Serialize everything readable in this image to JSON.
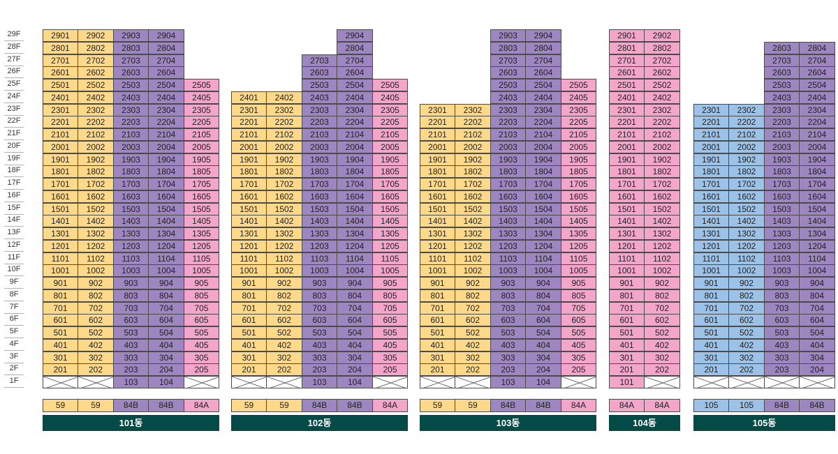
{
  "floors": [
    "1F",
    "2F",
    "3F",
    "4F",
    "5F",
    "6F",
    "7F",
    "8F",
    "9F",
    "10F",
    "11F",
    "12F",
    "13F",
    "14F",
    "15F",
    "16F",
    "17F",
    "18F",
    "19F",
    "20F",
    "21F",
    "22F",
    "23F",
    "24F",
    "25F",
    "26F",
    "27F",
    "28F",
    "29F"
  ],
  "legend_colors": {
    "59": "#fed98a",
    "84B": "#9e86c0",
    "84A": "#f3a5ca",
    "105": "#9cc2e7"
  },
  "buildings": [
    {
      "name": "101동",
      "lines": [
        {
          "line": "1",
          "type": "59",
          "floors": [
            2,
            29
          ]
        },
        {
          "line": "2",
          "type": "59",
          "floors": [
            2,
            29
          ]
        },
        {
          "line": "3",
          "type": "84B",
          "floors": [
            1,
            29
          ]
        },
        {
          "line": "4",
          "type": "84B",
          "floors": [
            1,
            29
          ]
        },
        {
          "line": "5",
          "type": "84A",
          "floors": [
            2,
            25
          ]
        }
      ]
    },
    {
      "name": "102동",
      "lines": [
        {
          "line": "1",
          "type": "59",
          "floors": [
            2,
            24
          ]
        },
        {
          "line": "2",
          "type": "59",
          "floors": [
            2,
            24
          ]
        },
        {
          "line": "3",
          "type": "84B",
          "floors": [
            1,
            27
          ]
        },
        {
          "line": "4",
          "type": "84B",
          "floors": [
            1,
            29
          ]
        },
        {
          "line": "5",
          "type": "84A",
          "floors": [
            2,
            25
          ]
        }
      ]
    },
    {
      "name": "103동",
      "lines": [
        {
          "line": "1",
          "type": "59",
          "floors": [
            2,
            23
          ]
        },
        {
          "line": "2",
          "type": "59",
          "floors": [
            2,
            23
          ]
        },
        {
          "line": "3",
          "type": "84B",
          "floors": [
            1,
            29
          ]
        },
        {
          "line": "4",
          "type": "84B",
          "floors": [
            1,
            29
          ]
        },
        {
          "line": "5",
          "type": "84A",
          "floors": [
            2,
            25
          ]
        }
      ]
    },
    {
      "name": "104동",
      "lines": [
        {
          "line": "1",
          "type": "84A",
          "floors": [
            1,
            29
          ]
        },
        {
          "line": "2",
          "type": "84A",
          "floors": [
            2,
            29
          ]
        }
      ]
    },
    {
      "name": "105동",
      "lines": [
        {
          "line": "1",
          "type": "105",
          "floors": [
            2,
            23
          ]
        },
        {
          "line": "2",
          "type": "105",
          "floors": [
            2,
            23
          ]
        },
        {
          "line": "3",
          "type": "84B",
          "floors": [
            2,
            28
          ]
        },
        {
          "line": "4",
          "type": "84B",
          "floors": [
            2,
            28
          ]
        }
      ]
    }
  ]
}
